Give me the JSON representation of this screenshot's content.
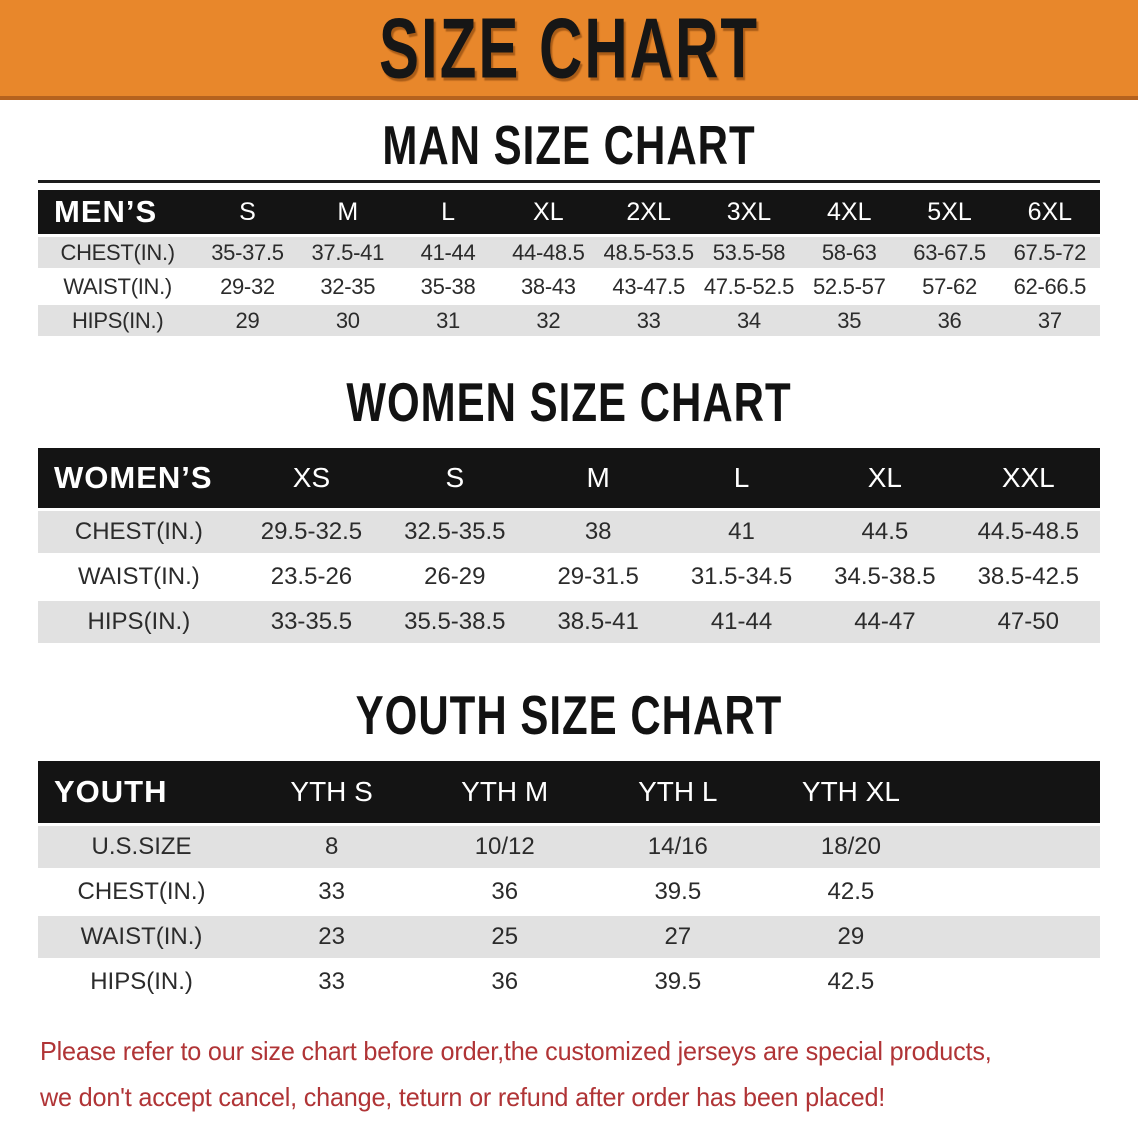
{
  "banner": {
    "title": "SIZE CHART"
  },
  "colors": {
    "banner_orange": "#E8872B",
    "banner_edge": "#B5621E",
    "header_black": "#141414",
    "row_gray": "#E1E1E1",
    "note_red": "#B03436"
  },
  "man": {
    "heading": "MAN SIZE CHART",
    "corner": "MEN’S",
    "sizes": [
      "S",
      "M",
      "L",
      "XL",
      "2XL",
      "3XL",
      "4XL",
      "5XL",
      "6XL"
    ],
    "rows": [
      {
        "label": "CHEST(IN.)",
        "values": [
          "35-37.5",
          "37.5-41",
          "41-44",
          "44-48.5",
          "48.5-53.5",
          "53.5-58",
          "58-63",
          "63-67.5",
          "67.5-72"
        ]
      },
      {
        "label": "WAIST(IN.)",
        "values": [
          "29-32",
          "32-35",
          "35-38",
          "38-43",
          "43-47.5",
          "47.5-52.5",
          "52.5-57",
          "57-62",
          "62-66.5"
        ]
      },
      {
        "label": "HIPS(IN.)",
        "values": [
          "29",
          "30",
          "31",
          "32",
          "33",
          "34",
          "35",
          "36",
          "37"
        ]
      }
    ]
  },
  "women": {
    "heading": "WOMEN SIZE CHART",
    "corner": "WOMEN’S",
    "sizes": [
      "XS",
      "S",
      "M",
      "L",
      "XL",
      "XXL"
    ],
    "rows": [
      {
        "label": "CHEST(IN.)",
        "values": [
          "29.5-32.5",
          "32.5-35.5",
          "38",
          "41",
          "44.5",
          "44.5-48.5"
        ]
      },
      {
        "label": "WAIST(IN.)",
        "values": [
          "23.5-26",
          "26-29",
          "29-31.5",
          "31.5-34.5",
          "34.5-38.5",
          "38.5-42.5"
        ]
      },
      {
        "label": "HIPS(IN.)",
        "values": [
          "33-35.5",
          "35.5-38.5",
          "38.5-41",
          "41-44",
          "44-47",
          "47-50"
        ]
      }
    ]
  },
  "youth": {
    "heading": "YOUTH SIZE CHART",
    "corner": "YOUTH",
    "sizes": [
      "YTH S",
      "YTH M",
      "YTH L",
      "YTH XL"
    ],
    "rows": [
      {
        "label": "U.S.SIZE",
        "values": [
          "8",
          "10/12",
          "14/16",
          "18/20"
        ]
      },
      {
        "label": "CHEST(IN.)",
        "values": [
          "33",
          "36",
          "39.5",
          "42.5"
        ]
      },
      {
        "label": "WAIST(IN.)",
        "values": [
          "23",
          "25",
          "27",
          "29"
        ]
      },
      {
        "label": "HIPS(IN.)",
        "values": [
          "33",
          "36",
          "39.5",
          "42.5"
        ]
      }
    ]
  },
  "note": {
    "line1": "Please refer to our size chart before order,the customized jerseys are special products,",
    "line2": "we don't accept cancel, change, teturn or refund after order has been placed!"
  }
}
